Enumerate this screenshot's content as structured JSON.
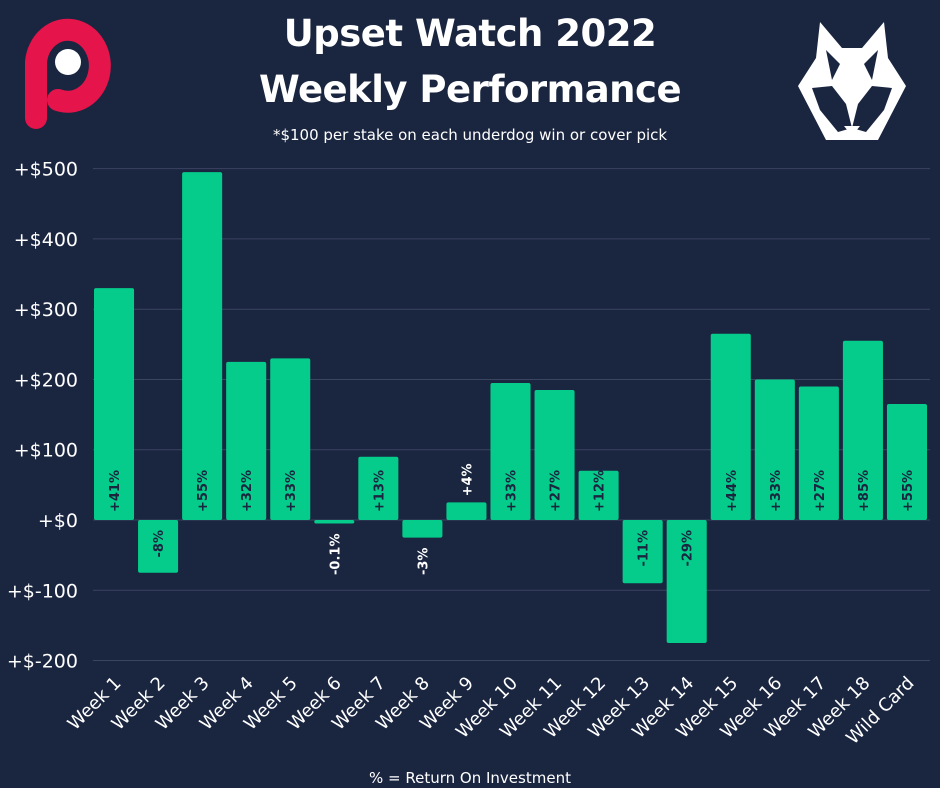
{
  "title_line1": "Upset Watch 2022",
  "title_line2": "Weekly Performance",
  "subtitle": "*$100 per stake on each underdog win or cover pick",
  "footer": "% = Return On Investment",
  "logos": {
    "left": "p-logo",
    "right": "wolf-logo"
  },
  "colors": {
    "background": "#1a2540",
    "bar": "#05cc8a",
    "grid": "#3a4560",
    "logo_left": "#e5144a",
    "text": "#ffffff"
  },
  "chart_data": {
    "type": "bar",
    "title": "Upset Watch 2022 Weekly Performance",
    "subtitle": "*$100 per stake on each underdog win or cover pick",
    "xlabel": "",
    "ylabel": "",
    "ylim": [
      -200,
      500
    ],
    "yticks": [
      500,
      400,
      300,
      200,
      100,
      0,
      -100,
      -200
    ],
    "ytick_labels": [
      "+$500",
      "+$400",
      "+$300",
      "+$200",
      "+$100",
      "+$0",
      "+$-100",
      "+$-200"
    ],
    "grid": true,
    "categories": [
      "Week 1",
      "Week 2",
      "Week 3",
      "Week 4",
      "Week 5",
      "Week 6",
      "Week 7",
      "Week 8",
      "Week 9",
      "Week 10",
      "Week 11",
      "Week 12",
      "Week 13",
      "Week 14",
      "Week 15",
      "Week 16",
      "Week 17",
      "Week 18",
      "Wild Card"
    ],
    "values": [
      330,
      -75,
      495,
      225,
      230,
      -5,
      90,
      -25,
      25,
      195,
      185,
      70,
      -90,
      -175,
      265,
      200,
      190,
      255,
      165
    ],
    "data_labels": [
      "+41%",
      "-8%",
      "+55%",
      "+32%",
      "+33%",
      "-0.1%",
      "+13%",
      "-3%",
      "+4%",
      "+33%",
      "+27%",
      "+12%",
      "-11%",
      "-29%",
      "+44%",
      "+33%",
      "+27%",
      "+85%",
      "+55%"
    ]
  }
}
